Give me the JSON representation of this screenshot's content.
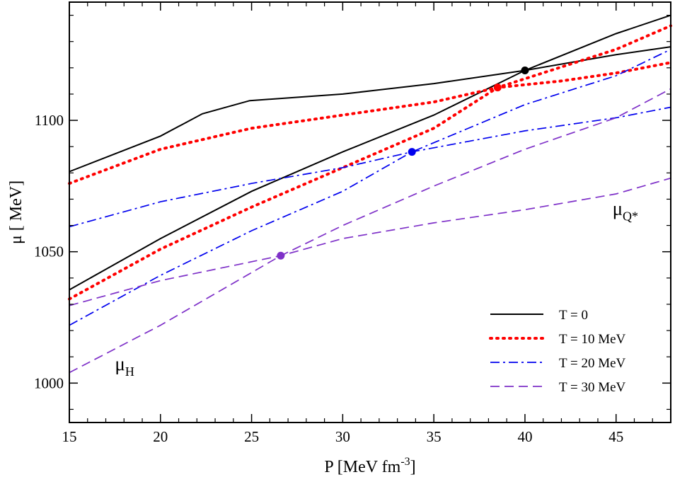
{
  "chart_data": {
    "type": "line",
    "title": "",
    "xlabel": "P [MeV fm",
    "xlabel_sup": "-3",
    "xlabel_end": "]",
    "ylabel": "μ [ MeV]",
    "xlim": [
      15,
      48
    ],
    "ylim": [
      985,
      1145
    ],
    "xticks": [
      15,
      20,
      25,
      30,
      35,
      40,
      45
    ],
    "yticks": [
      1000,
      1050,
      1100
    ],
    "annotations": [
      {
        "symbol": "μ",
        "sub": "H",
        "x": 17.5,
        "y": 1005
      },
      {
        "symbol": "μ",
        "sub": "Q*",
        "x": 44.8,
        "y": 1064
      }
    ],
    "series": [
      {
        "name": "T = 0",
        "color": "#000000",
        "dash": "solid",
        "width": 2,
        "hadron": [
          [
            15,
            1035.5
          ],
          [
            20,
            1055
          ],
          [
            25,
            1073
          ],
          [
            30,
            1088
          ],
          [
            35,
            1102
          ],
          [
            40,
            1119
          ],
          [
            45,
            1133
          ],
          [
            48,
            1140
          ]
        ],
        "quark": [
          [
            15,
            1080.5
          ],
          [
            20,
            1094
          ],
          [
            22.3,
            1102.5
          ],
          [
            24.9,
            1107.5
          ],
          [
            30,
            1110
          ],
          [
            35,
            1114
          ],
          [
            40,
            1119
          ],
          [
            45,
            1125
          ],
          [
            48,
            1128
          ]
        ],
        "crossing": [
          40,
          1119
        ]
      },
      {
        "name": "T = 10 MeV",
        "color": "#ff0000",
        "dash": "dotted",
        "width": 4,
        "hadron": [
          [
            15,
            1032
          ],
          [
            20,
            1051
          ],
          [
            25,
            1067
          ],
          [
            30,
            1082
          ],
          [
            35,
            1097
          ],
          [
            38.5,
            1112.5
          ],
          [
            45,
            1127
          ],
          [
            48,
            1136
          ]
        ],
        "quark": [
          [
            15,
            1076
          ],
          [
            20,
            1089
          ],
          [
            25,
            1097
          ],
          [
            30,
            1102
          ],
          [
            35,
            1107
          ],
          [
            38.5,
            1112.5
          ],
          [
            42,
            1115
          ],
          [
            45,
            1118
          ],
          [
            48,
            1122
          ]
        ],
        "crossing": [
          38.5,
          1112.5
        ]
      },
      {
        "name": "T = 20 MeV",
        "color": "#0000ee",
        "dash": "dashdot",
        "width": 1.7,
        "hadron": [
          [
            15,
            1022
          ],
          [
            20,
            1041
          ],
          [
            25,
            1058
          ],
          [
            30,
            1073
          ],
          [
            33.8,
            1088
          ],
          [
            40,
            1106
          ],
          [
            45,
            1117
          ],
          [
            48,
            1127
          ]
        ],
        "quark": [
          [
            15,
            1059.5
          ],
          [
            20,
            1069
          ],
          [
            25,
            1076
          ],
          [
            30,
            1082
          ],
          [
            33.8,
            1088
          ],
          [
            40,
            1096
          ],
          [
            45,
            1101
          ],
          [
            48,
            1105
          ]
        ],
        "crossing": [
          33.8,
          1088
        ]
      },
      {
        "name": "T = 30 MeV",
        "color": "#7e30c8",
        "dash": "dashed",
        "width": 1.7,
        "hadron": [
          [
            15,
            1004
          ],
          [
            20,
            1022
          ],
          [
            26.6,
            1048.5
          ],
          [
            30,
            1060
          ],
          [
            35,
            1075
          ],
          [
            40,
            1089
          ],
          [
            45,
            1101
          ],
          [
            48,
            1112
          ]
        ],
        "quark": [
          [
            15,
            1029.5
          ],
          [
            20,
            1039
          ],
          [
            26.6,
            1048.5
          ],
          [
            30,
            1055
          ],
          [
            35,
            1061
          ],
          [
            40,
            1066
          ],
          [
            45,
            1072
          ],
          [
            48,
            1078
          ]
        ],
        "crossing": [
          26.6,
          1048.5
        ]
      }
    ]
  }
}
